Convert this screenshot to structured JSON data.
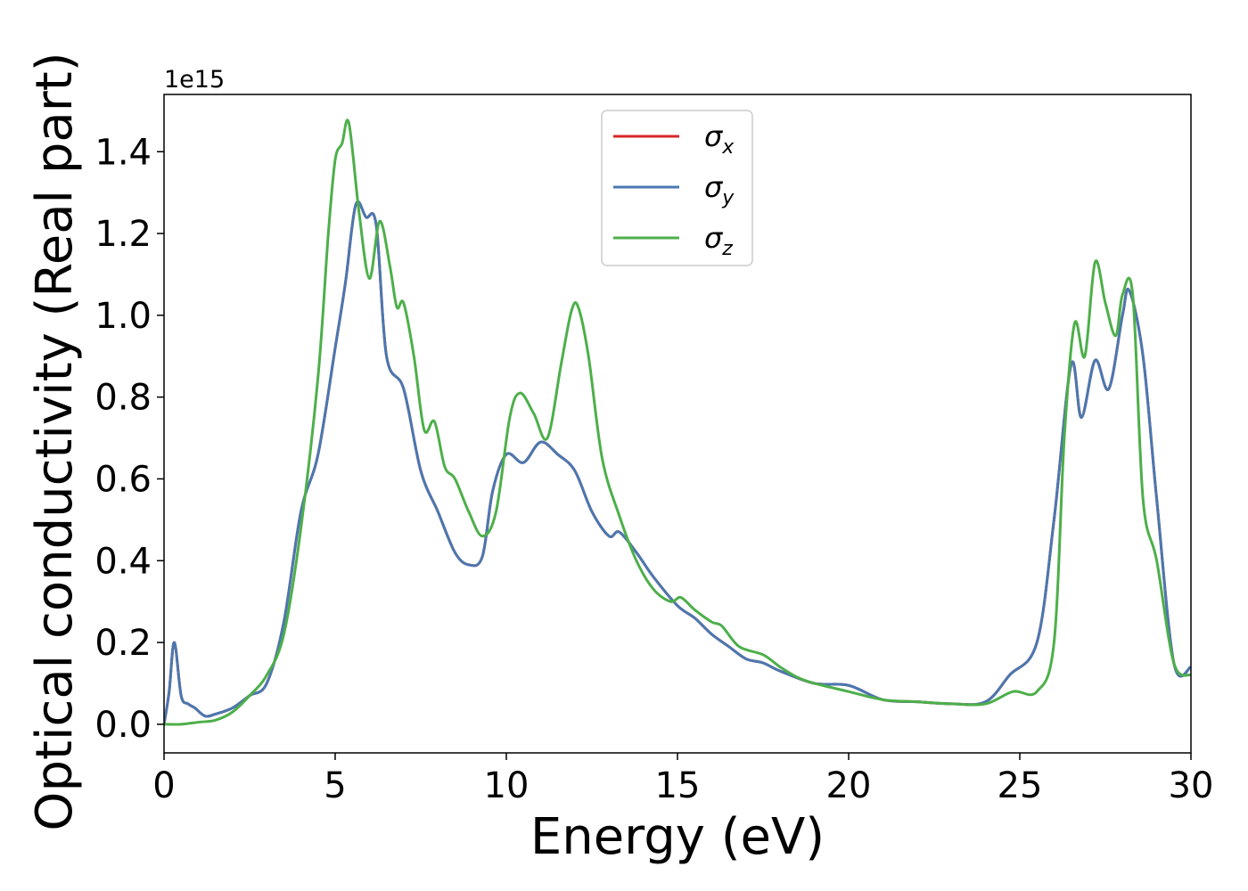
{
  "chart_data": {
    "type": "line",
    "xlabel": "Energy (eV)",
    "ylabel": "Optical conductivity (Real part)",
    "y_offset_label": "1e15",
    "xlim": [
      0,
      30
    ],
    "ylim": [
      -0.07,
      1.54
    ],
    "xticks": [
      0,
      5,
      10,
      15,
      20,
      25,
      30
    ],
    "yticks": [
      0.0,
      0.2,
      0.4,
      0.6,
      0.8,
      1.0,
      1.2,
      1.4
    ],
    "xtick_labels": [
      "0",
      "5",
      "10",
      "15",
      "20",
      "25",
      "30"
    ],
    "ytick_labels": [
      "0.0",
      "0.2",
      "0.4",
      "0.6",
      "0.8",
      "1.0",
      "1.2",
      "1.4"
    ],
    "grid": false,
    "legend_position": "top-center",
    "series": [
      {
        "name": "σx",
        "legend_base": "σ",
        "legend_sub": "x",
        "color": "#d62728",
        "x": [
          0,
          0.15,
          0.3,
          0.5,
          0.7,
          0.9,
          1.2,
          1.5,
          2.0,
          2.5,
          3.0,
          3.5,
          4.0,
          4.5,
          5.0,
          5.3,
          5.6,
          5.9,
          6.2,
          6.5,
          7.0,
          7.5,
          8.0,
          8.5,
          8.9,
          9.3,
          9.6,
          10.0,
          10.5,
          11.0,
          11.5,
          12.0,
          12.5,
          13.0,
          13.3,
          13.8,
          14.3,
          15.0,
          15.5,
          16.0,
          16.5,
          17.0,
          17.5,
          18.0,
          19.0,
          20.0,
          21.0,
          22.0,
          23.0,
          24.0,
          24.7,
          25.5,
          26.0,
          26.5,
          26.8,
          27.2,
          27.6,
          28.0,
          28.2,
          28.6,
          29.0,
          29.5,
          30.0
        ],
        "values": [
          0.0,
          0.08,
          0.2,
          0.07,
          0.05,
          0.04,
          0.02,
          0.025,
          0.04,
          0.07,
          0.1,
          0.25,
          0.52,
          0.66,
          0.92,
          1.08,
          1.27,
          1.24,
          1.22,
          0.9,
          0.82,
          0.62,
          0.52,
          0.42,
          0.39,
          0.41,
          0.57,
          0.66,
          0.64,
          0.69,
          0.66,
          0.62,
          0.52,
          0.46,
          0.47,
          0.42,
          0.36,
          0.29,
          0.26,
          0.22,
          0.19,
          0.16,
          0.15,
          0.13,
          0.1,
          0.095,
          0.06,
          0.055,
          0.05,
          0.055,
          0.12,
          0.2,
          0.5,
          0.88,
          0.75,
          0.89,
          0.82,
          1.0,
          1.06,
          0.9,
          0.55,
          0.15,
          0.14
        ]
      },
      {
        "name": "σy",
        "legend_base": "σ",
        "legend_sub": "y",
        "color": "#4a78b0",
        "x": [
          0,
          0.15,
          0.3,
          0.5,
          0.7,
          0.9,
          1.2,
          1.5,
          2.0,
          2.5,
          3.0,
          3.5,
          4.0,
          4.5,
          5.0,
          5.3,
          5.6,
          5.9,
          6.2,
          6.5,
          7.0,
          7.5,
          8.0,
          8.5,
          8.9,
          9.3,
          9.6,
          10.0,
          10.5,
          11.0,
          11.5,
          12.0,
          12.5,
          13.0,
          13.3,
          13.8,
          14.3,
          15.0,
          15.5,
          16.0,
          16.5,
          17.0,
          17.5,
          18.0,
          19.0,
          20.0,
          21.0,
          22.0,
          23.0,
          24.0,
          24.7,
          25.5,
          26.0,
          26.5,
          26.8,
          27.2,
          27.6,
          28.0,
          28.2,
          28.6,
          29.0,
          29.5,
          30.0
        ],
        "values": [
          0.0,
          0.08,
          0.2,
          0.07,
          0.05,
          0.04,
          0.02,
          0.025,
          0.04,
          0.07,
          0.1,
          0.25,
          0.52,
          0.66,
          0.92,
          1.08,
          1.27,
          1.24,
          1.22,
          0.9,
          0.82,
          0.62,
          0.52,
          0.42,
          0.39,
          0.41,
          0.57,
          0.66,
          0.64,
          0.69,
          0.66,
          0.62,
          0.52,
          0.46,
          0.47,
          0.42,
          0.36,
          0.29,
          0.26,
          0.22,
          0.19,
          0.16,
          0.15,
          0.13,
          0.1,
          0.095,
          0.06,
          0.055,
          0.05,
          0.055,
          0.12,
          0.2,
          0.5,
          0.88,
          0.75,
          0.89,
          0.82,
          1.0,
          1.06,
          0.9,
          0.55,
          0.15,
          0.14
        ]
      },
      {
        "name": "σz",
        "legend_base": "σ",
        "legend_sub": "z",
        "color": "#4daf4a",
        "x": [
          0,
          0.5,
          1.0,
          1.5,
          2.0,
          2.5,
          3.0,
          3.5,
          4.0,
          4.5,
          4.8,
          5.0,
          5.2,
          5.4,
          5.7,
          6.0,
          6.3,
          6.6,
          6.8,
          7.0,
          7.3,
          7.6,
          7.9,
          8.2,
          8.5,
          8.9,
          9.3,
          9.7,
          10.1,
          10.4,
          10.8,
          11.2,
          11.6,
          11.9,
          12.1,
          12.4,
          12.8,
          13.3,
          13.8,
          14.3,
          14.8,
          15.1,
          15.5,
          16.0,
          16.3,
          16.8,
          17.5,
          18.0,
          18.5,
          19.0,
          20.0,
          21.0,
          22.0,
          23.0,
          24.0,
          24.8,
          25.5,
          26.0,
          26.3,
          26.6,
          26.9,
          27.2,
          27.5,
          27.8,
          28.0,
          28.3,
          28.6,
          29.0,
          29.5,
          30.0
        ],
        "values": [
          0.0,
          0.0,
          0.005,
          0.01,
          0.03,
          0.07,
          0.12,
          0.22,
          0.48,
          0.85,
          1.2,
          1.38,
          1.42,
          1.47,
          1.25,
          1.09,
          1.23,
          1.12,
          1.02,
          1.03,
          0.9,
          0.72,
          0.74,
          0.63,
          0.6,
          0.52,
          0.46,
          0.52,
          0.75,
          0.81,
          0.76,
          0.7,
          0.88,
          1.01,
          1.02,
          0.9,
          0.65,
          0.51,
          0.4,
          0.33,
          0.3,
          0.31,
          0.28,
          0.25,
          0.24,
          0.19,
          0.17,
          0.14,
          0.115,
          0.1,
          0.08,
          0.06,
          0.055,
          0.05,
          0.05,
          0.08,
          0.08,
          0.2,
          0.7,
          0.98,
          0.9,
          1.13,
          1.03,
          0.95,
          1.05,
          1.05,
          0.55,
          0.4,
          0.15,
          0.12
        ]
      }
    ]
  }
}
